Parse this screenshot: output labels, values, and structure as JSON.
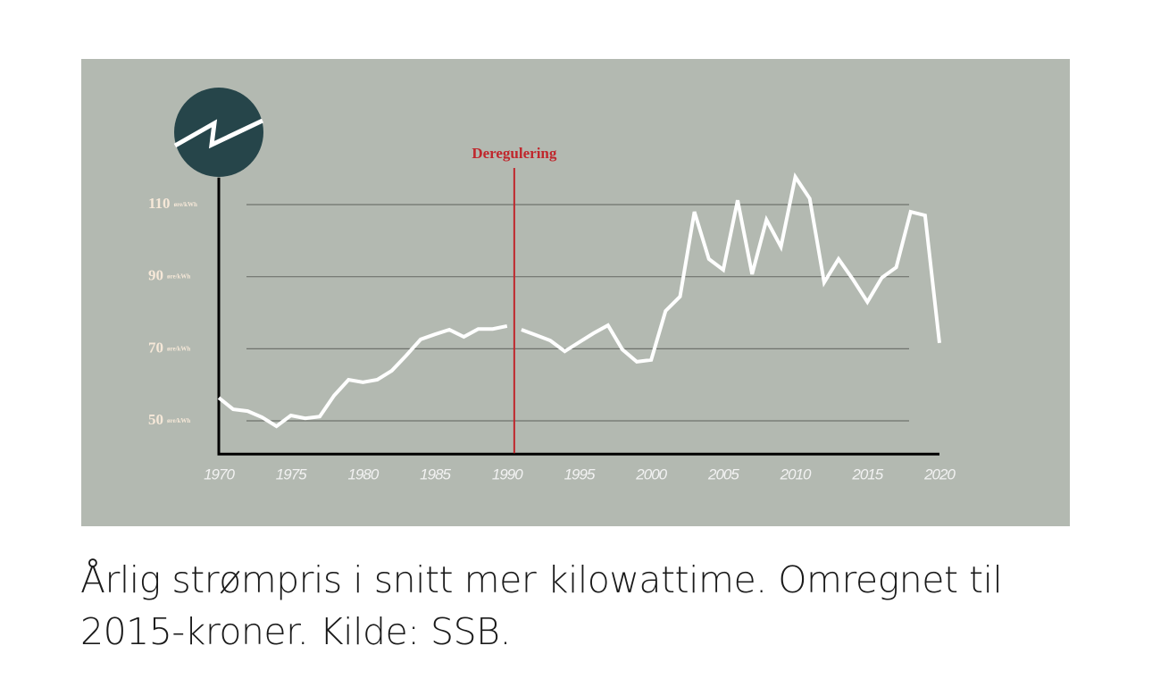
{
  "chart_data": {
    "type": "line",
    "caption": "Årlig strømpris i snitt mer kilowattime. Omregnet til 2015-kroner. Kilde: SSB.",
    "y_unit": "øre/kWh",
    "annotation": {
      "text": "Deregulering",
      "x": 1990.5,
      "color": "#c0272d"
    },
    "series": [
      {
        "color": "#ffffff",
        "x": [
          1970,
          1971,
          1972,
          1973,
          1974,
          1975,
          1976,
          1977,
          1978,
          1979,
          1980,
          1981,
          1982,
          1983,
          1984,
          1985,
          1986,
          1987,
          1988,
          1989,
          1990
        ],
        "values": [
          56.4,
          53.2,
          52.7,
          51,
          48.5,
          51.5,
          50.7,
          51.2,
          57,
          61.4,
          60.7,
          61.4,
          63.9,
          68.1,
          72.6,
          74,
          75.3,
          73.3,
          75.5,
          75.5,
          76.3
        ]
      },
      {
        "color": "#ffffff",
        "x": [
          1991,
          1992,
          1993,
          1994,
          1995,
          1996,
          1997,
          1998,
          1999,
          2000,
          2001,
          2002,
          2003,
          2004,
          2005,
          2006,
          2007,
          2008,
          2009,
          2010,
          2011,
          2012,
          2013,
          2014,
          2015,
          2016,
          2017,
          2018,
          2019,
          2020
        ],
        "values": [
          75.3,
          73.8,
          72.3,
          69.3,
          71.8,
          74.3,
          76.5,
          69.8,
          66.4,
          66.9,
          80.5,
          84.5,
          108,
          94.9,
          91.9,
          111.2,
          90.7,
          105.8,
          98.3,
          117.7,
          111.7,
          88.4,
          94.9,
          89.2,
          83,
          89.7,
          92.6,
          108,
          107,
          71.6
        ]
      }
    ],
    "xlim": [
      1970,
      2020
    ],
    "xticks": [
      1970,
      1975,
      1980,
      1985,
      1990,
      1995,
      2000,
      2005,
      2010,
      2015,
      2020
    ],
    "ylim": [
      41,
      120
    ],
    "yticks": [
      50,
      70,
      90,
      110
    ],
    "grid": true
  }
}
